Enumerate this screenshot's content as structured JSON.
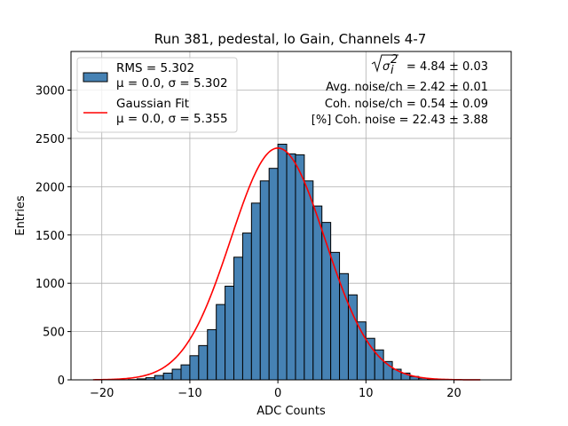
{
  "chart_data": {
    "type": "histogram",
    "title": "Run 381, pedestal, lo Gain, Channels 4-7",
    "xlabel": "ADC Counts",
    "ylabel": "Entries",
    "xlim": [
      -23.5,
      26.5
    ],
    "ylim": [
      0,
      3400
    ],
    "xticks": [
      -20,
      -10,
      0,
      10,
      20
    ],
    "xtick_labels": [
      "−20",
      "−10",
      "0",
      "10",
      "20"
    ],
    "yticks": [
      0,
      500,
      1000,
      1500,
      2000,
      2500,
      3000
    ],
    "ytick_labels": [
      "0",
      "500",
      "1000",
      "1500",
      "2000",
      "2500",
      "3000"
    ],
    "grid": true,
    "bin_width": 1,
    "bin_lefts": [
      -21,
      -20,
      -19,
      -18,
      -17,
      -16,
      -15,
      -14,
      -13,
      -12,
      -11,
      -10,
      -9,
      -8,
      -7,
      -6,
      -5,
      -4,
      -3,
      -2,
      -1,
      0,
      1,
      2,
      3,
      4,
      5,
      6,
      7,
      8,
      9,
      10,
      11,
      12,
      13,
      14,
      15,
      16,
      17,
      18,
      19,
      20,
      21,
      22,
      23
    ],
    "bin_counts": [
      0,
      0,
      0,
      1,
      3,
      10,
      22,
      45,
      70,
      110,
      155,
      250,
      355,
      520,
      780,
      970,
      1270,
      1520,
      1830,
      2060,
      2190,
      2440,
      2340,
      2330,
      2060,
      1800,
      1630,
      1320,
      1100,
      880,
      600,
      430,
      310,
      190,
      110,
      70,
      35,
      18,
      8,
      4,
      2,
      1,
      0,
      0,
      0
    ],
    "bar_color": "#4682b4",
    "bar_edge_color": "#000000",
    "fit": {
      "type": "gaussian",
      "mu": 0.0,
      "sigma": 5.355,
      "amplitude": 2400,
      "color": "#ff0000",
      "x_range": [
        -21,
        23
      ]
    },
    "legend": {
      "placement": "upper-left",
      "entries": [
        {
          "kind": "patch",
          "line1": "RMS = 5.302",
          "line2": "μ = 0.0, σ = 5.302"
        },
        {
          "kind": "line",
          "line1": "Gaussian Fit",
          "line2": "μ = 0.0, σ = 5.355"
        }
      ]
    },
    "annotations": {
      "placement": "upper-right",
      "sqrt_sigma_value": "= 4.84 ± 0.03",
      "sqrt_sigma_symbol": "σ",
      "sqrt_sigma_sub": "i",
      "sqrt_sigma_sup": "2",
      "lines": [
        "Avg. noise/ch = 2.42 ± 0.01",
        "Coh. noise/ch = 0.54 ± 0.09",
        "[%] Coh. noise = 22.43 ± 3.88"
      ]
    }
  }
}
